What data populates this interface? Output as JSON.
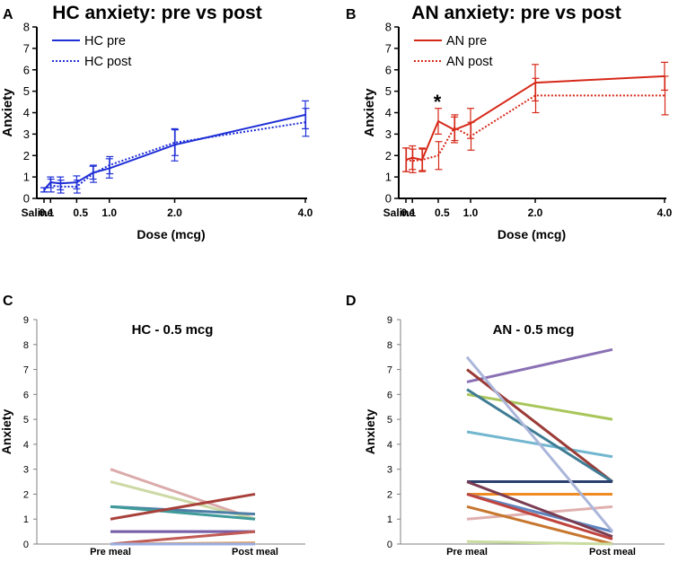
{
  "chart_data": [
    {
      "panel": "A",
      "type": "line",
      "title": "HC anxiety: pre vs post",
      "xlabel": "Dose (mcg)",
      "ylabel": "Anxiety",
      "ylim": [
        0,
        8
      ],
      "yticks": [
        0,
        1,
        2,
        3,
        4,
        5,
        6,
        7,
        8
      ],
      "xtick_labels": [
        {
          "x": 0,
          "label": "Saline"
        },
        {
          "x": 0.1,
          "label": "0.1"
        },
        {
          "x": 0.5,
          "label": "0.5"
        },
        {
          "x": 1.0,
          "label": "1.0"
        },
        {
          "x": 2.0,
          "label": "2.0"
        },
        {
          "x": 4.0,
          "label": "4.0"
        }
      ],
      "legend_position": "top-left",
      "color": "#1f2fd6",
      "annotations": [],
      "series": [
        {
          "name": "HC pre",
          "style": "solid",
          "points": [
            {
              "x": 0,
              "y": 0.4,
              "err": 0.1
            },
            {
              "x": 0.1,
              "y": 0.75,
              "err": 0.25
            },
            {
              "x": 0.25,
              "y": 0.7,
              "err": 0.3
            },
            {
              "x": 0.5,
              "y": 0.75,
              "err": 0.3
            },
            {
              "x": 0.75,
              "y": 1.2,
              "err": 0.3
            },
            {
              "x": 1.0,
              "y": 1.4,
              "err": 0.45
            },
            {
              "x": 2.0,
              "y": 2.5,
              "err": 0.75
            },
            {
              "x": 4.0,
              "y": 3.9,
              "err": 0.65
            }
          ]
        },
        {
          "name": "HC post",
          "style": "dotted",
          "points": [
            {
              "x": 0,
              "y": 0.4,
              "err": 0.1
            },
            {
              "x": 0.1,
              "y": 0.6,
              "err": 0.3
            },
            {
              "x": 0.25,
              "y": 0.55,
              "err": 0.3
            },
            {
              "x": 0.5,
              "y": 0.55,
              "err": 0.3
            },
            {
              "x": 0.75,
              "y": 1.15,
              "err": 0.4
            },
            {
              "x": 1.0,
              "y": 1.55,
              "err": 0.4
            },
            {
              "x": 2.0,
              "y": 2.6,
              "err": 0.6
            },
            {
              "x": 4.0,
              "y": 3.55,
              "err": 0.65
            }
          ]
        }
      ]
    },
    {
      "panel": "B",
      "type": "line",
      "title": "AN anxiety: pre vs post",
      "xlabel": "Dose (mcg)",
      "ylabel": "Anxiety",
      "ylim": [
        0,
        8
      ],
      "yticks": [
        0,
        1,
        2,
        3,
        4,
        5,
        6,
        7,
        8
      ],
      "xtick_labels": [
        {
          "x": 0,
          "label": "Saline"
        },
        {
          "x": 0.1,
          "label": "0.1"
        },
        {
          "x": 0.5,
          "label": "0.5"
        },
        {
          "x": 1.0,
          "label": "1.0"
        },
        {
          "x": 2.0,
          "label": "2.0"
        },
        {
          "x": 4.0,
          "label": "4.0"
        }
      ],
      "legend_position": "top-left",
      "color": "#d62818",
      "annotations": [
        {
          "x": 0.5,
          "y": 4.6,
          "text": "*"
        }
      ],
      "series": [
        {
          "name": "AN pre",
          "style": "solid",
          "points": [
            {
              "x": 0,
              "y": 1.8,
              "err": 0.55
            },
            {
              "x": 0.1,
              "y": 1.9,
              "err": 0.55
            },
            {
              "x": 0.25,
              "y": 1.8,
              "err": 0.55
            },
            {
              "x": 0.5,
              "y": 3.6,
              "err": 0.6
            },
            {
              "x": 0.75,
              "y": 3.2,
              "err": 0.6
            },
            {
              "x": 1.0,
              "y": 3.5,
              "err": 0.7
            },
            {
              "x": 2.0,
              "y": 5.4,
              "err": 0.85
            },
            {
              "x": 4.0,
              "y": 5.7,
              "err": 0.65
            }
          ]
        },
        {
          "name": "AN post",
          "style": "dotted",
          "points": [
            {
              "x": 0,
              "y": 1.8,
              "err": 0.55
            },
            {
              "x": 0.1,
              "y": 1.75,
              "err": 0.55
            },
            {
              "x": 0.25,
              "y": 1.8,
              "err": 0.5
            },
            {
              "x": 0.5,
              "y": 2.0,
              "err": 0.65
            },
            {
              "x": 0.75,
              "y": 3.3,
              "err": 0.6
            },
            {
              "x": 1.0,
              "y": 2.9,
              "err": 0.65
            },
            {
              "x": 2.0,
              "y": 4.8,
              "err": 0.8
            },
            {
              "x": 4.0,
              "y": 4.8,
              "err": 0.9
            }
          ]
        }
      ]
    },
    {
      "panel": "C",
      "type": "line",
      "title": "HC - 0.5 mcg",
      "ylabel": "Anxiety",
      "ylim": [
        0,
        9
      ],
      "yticks": [
        0,
        1,
        2,
        3,
        4,
        5,
        6,
        7,
        8,
        9
      ],
      "categories": [
        "Pre meal",
        "Post meal"
      ],
      "series": [
        {
          "pre": 3.0,
          "post": 1.0,
          "color": "#dbaaaa"
        },
        {
          "pre": 2.5,
          "post": 1.0,
          "color": "#cdd9a4"
        },
        {
          "pre": 1.5,
          "post": 1.2,
          "color": "#4e7fa6"
        },
        {
          "pre": 1.5,
          "post": 1.0,
          "color": "#3f9a9a"
        },
        {
          "pre": 1.0,
          "post": 2.0,
          "color": "#a8403a"
        },
        {
          "pre": 0.5,
          "post": 0.5,
          "color": "#5e9ccc"
        },
        {
          "pre": 0.5,
          "post": 0.5,
          "color": "#7a5fa6"
        },
        {
          "pre": 0.0,
          "post": 0.5,
          "color": "#c05a54"
        },
        {
          "pre": 0.0,
          "post": 0.05,
          "color": "#e6a05a"
        },
        {
          "pre": 0.0,
          "post": 0.0,
          "color": "#9aaee0"
        }
      ]
    },
    {
      "panel": "D",
      "type": "line",
      "title": "AN - 0.5 mcg",
      "ylabel": "Anxiety",
      "ylim": [
        0,
        9
      ],
      "yticks": [
        0,
        1,
        2,
        3,
        4,
        5,
        6,
        7,
        8,
        9
      ],
      "categories": [
        "Pre meal",
        "Post meal"
      ],
      "series": [
        {
          "pre": 6.5,
          "post": 7.8,
          "color": "#8a70b4"
        },
        {
          "pre": 6.0,
          "post": 5.0,
          "color": "#a9c65a"
        },
        {
          "pre": 4.5,
          "post": 3.5,
          "color": "#72b6cf"
        },
        {
          "pre": 7.0,
          "post": 2.5,
          "color": "#9a3b36"
        },
        {
          "pre": 6.2,
          "post": 2.5,
          "color": "#3e7c94"
        },
        {
          "pre": 2.5,
          "post": 2.5,
          "color": "#2a3f6e"
        },
        {
          "pre": 2.0,
          "post": 2.0,
          "color": "#f08a24"
        },
        {
          "pre": 1.0,
          "post": 1.5,
          "color": "#e0b0b0"
        },
        {
          "pre": 2.0,
          "post": 0.5,
          "color": "#5e85c0"
        },
        {
          "pre": 1.5,
          "post": 0.0,
          "color": "#c7762e"
        },
        {
          "pre": 2.5,
          "post": 0.3,
          "color": "#7a3c52"
        },
        {
          "pre": 2.0,
          "post": 0.2,
          "color": "#c0443e"
        },
        {
          "pre": 7.5,
          "post": 0.5,
          "color": "#aab6da"
        },
        {
          "pre": 0.1,
          "post": 0.0,
          "color": "#c9dca0"
        }
      ]
    }
  ]
}
